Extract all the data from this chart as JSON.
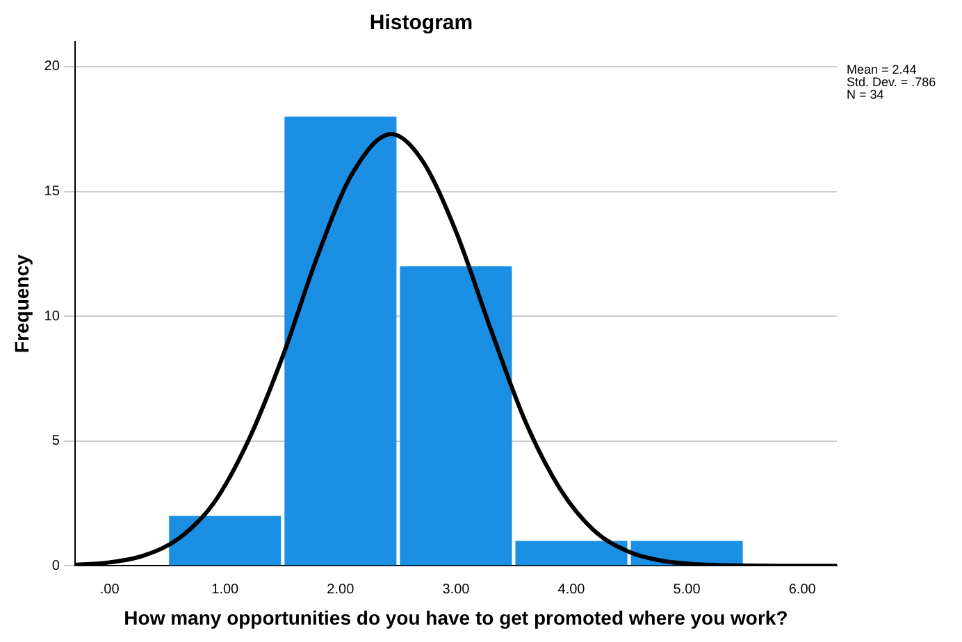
{
  "chart_data": {
    "type": "histogram",
    "title": "Histogram",
    "xlabel": "How many opportunities do you have to get promoted where you work?",
    "ylabel": "Frequency",
    "bins": [
      0.5,
      1.5,
      2.5,
      3.5,
      4.5,
      5.5
    ],
    "values": [
      2,
      18,
      12,
      1,
      1
    ],
    "color": "#1a8fe3",
    "series": [
      {
        "type": "line",
        "color": "#000000",
        "x": [
          -0.3,
          0,
          0.3,
          0.6,
          0.9,
          1.2,
          1.5,
          1.8,
          2.1,
          2.44,
          2.7,
          3.0,
          3.3,
          3.6,
          3.9,
          4.2,
          4.5,
          4.8,
          5.1,
          5.5,
          6.0,
          6.3
        ],
        "values": [
          0.04,
          0.14,
          0.42,
          1.1,
          2.5,
          5.0,
          8.4,
          12.4,
          15.7,
          17.3,
          16.3,
          13.4,
          9.5,
          5.8,
          3.1,
          1.4,
          0.56,
          0.19,
          0.06,
          0.01,
          0,
          0
        ]
      }
    ],
    "xlim": [
      -0.3,
      6.3
    ],
    "xticks": [
      {
        "value": 0,
        "label": ".00"
      },
      {
        "value": 1,
        "label": "1.00"
      },
      {
        "value": 2,
        "label": "2.00"
      },
      {
        "value": 3,
        "label": "3.00"
      },
      {
        "value": 4,
        "label": "4.00"
      },
      {
        "value": 5,
        "label": "5.00"
      },
      {
        "value": 6,
        "label": "6.00"
      }
    ],
    "ylim": [
      0,
      21
    ],
    "yticks": [
      0,
      5,
      10,
      15,
      20
    ],
    "grid": "y",
    "legend": false,
    "marker": "none",
    "line_style": "solid",
    "annotations": [
      "Mean = 2.44",
      "Std. Dev. = .786",
      "N = 34"
    ]
  }
}
